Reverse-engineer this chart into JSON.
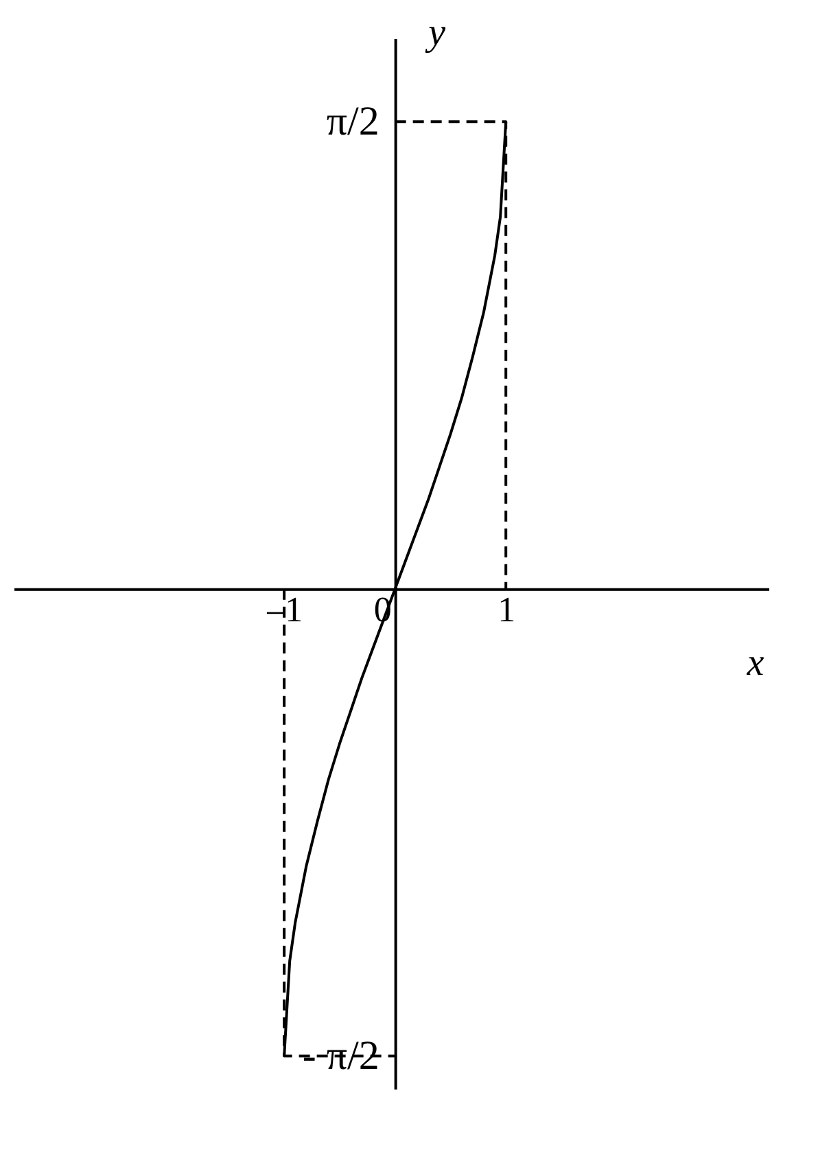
{
  "chart_data": {
    "type": "line",
    "xlabel": "x",
    "ylabel": "y",
    "xlim": [
      -3.44,
      3.37
    ],
    "ylim": [
      -1.68,
      1.85
    ],
    "xticks": [
      {
        "value": -1,
        "label": "–1"
      },
      0,
      1
    ],
    "yticks": [
      {
        "value": -1.57,
        "label": "- π/2"
      },
      {
        "value": 1.57,
        "label": "π/2"
      }
    ],
    "grid": false,
    "series": [
      {
        "color": "#000000",
        "line_style": "solid",
        "x": [
          -1,
          -0.95,
          -0.9,
          -0.8,
          -0.7,
          -0.6,
          -0.5,
          -0.4,
          -0.3,
          -0.2,
          -0.1,
          0,
          0.1,
          0.2,
          0.3,
          0.4,
          0.5,
          0.6,
          0.7,
          0.8,
          0.9,
          0.95,
          1
        ],
        "values": [
          -1.57,
          -1.25,
          -1.12,
          -0.93,
          -0.78,
          -0.64,
          -0.52,
          -0.41,
          -0.3,
          -0.2,
          -0.1,
          0,
          0.1,
          0.2,
          0.3,
          0.41,
          0.52,
          0.64,
          0.78,
          0.93,
          1.12,
          1.25,
          1.57
        ]
      },
      {
        "color": "#000000",
        "line_style": "dashed",
        "x": [
          0,
          1,
          1
        ],
        "values": [
          1.57,
          1.57,
          0
        ]
      },
      {
        "color": "#000000",
        "line_style": "dashed",
        "x": [
          -1,
          -1,
          0
        ],
        "values": [
          0,
          -1.57,
          -1.57
        ]
      }
    ]
  }
}
